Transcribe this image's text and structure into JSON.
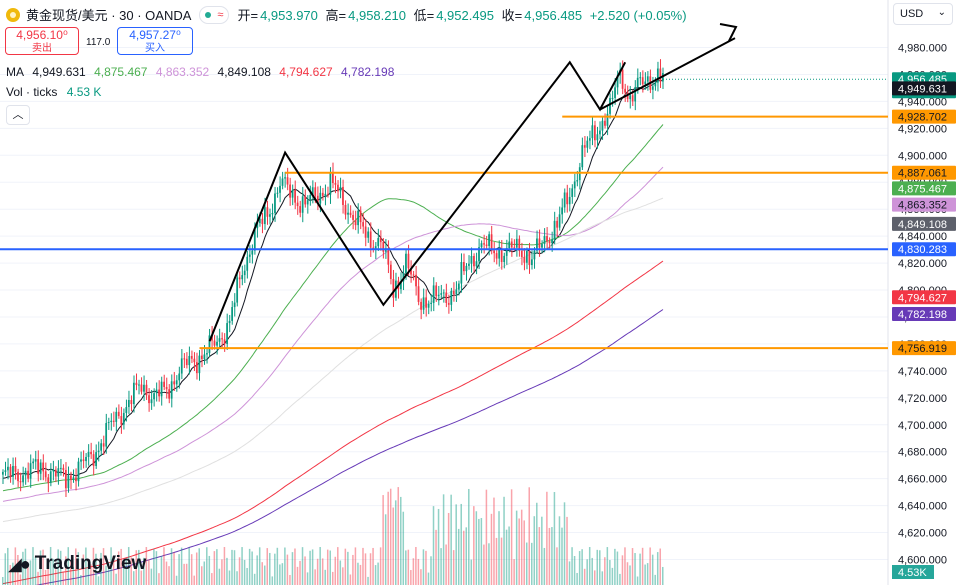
{
  "header": {
    "symbol_title": "黄金现货/美元 · 30 · OANDA",
    "open_label": "开=",
    "open": "4,953.970",
    "high_label": "高=",
    "high": "4,958.210",
    "low_label": "低=",
    "low": "4,952.495",
    "close_label": "收=",
    "close": "4,956.485",
    "change": "+2.520 (+0.05%)"
  },
  "trade": {
    "sell_price": "4,956.10⁰",
    "sell_label": "卖出",
    "spread": "117.0",
    "buy_price": "4,957.27⁰",
    "buy_label": "买入"
  },
  "ma": {
    "label": "MA",
    "values": [
      "4,949.631",
      "4,875.467",
      "4,863.352",
      "4,849.108",
      "4,794.627",
      "4,782.198"
    ],
    "colors": [
      "#131722",
      "#4caf50",
      "#ce93d8",
      "#131722",
      "#f23645",
      "#673ab7"
    ]
  },
  "vol": {
    "label": "Vol · ticks",
    "value": "4.53 K"
  },
  "currency": "USD",
  "logo": "TradingView",
  "colors": {
    "up": "#089981",
    "down": "#f23645",
    "hline_orange": "#ff9800",
    "hline_blue": "#2962ff"
  },
  "chart_data": {
    "type": "candlestick",
    "y_ticks": [
      "4,600.000",
      "4,620.000",
      "4,640.000",
      "4,660.000",
      "4,680.000",
      "4,700.000",
      "4,720.000",
      "4,740.000",
      "4,760.000",
      "4,780.000",
      "4,800.000",
      "4,820.000",
      "4,840.000",
      "4,860.000",
      "4,880.000",
      "4,900.000",
      "4,920.000",
      "4,940.000",
      "4,960.000",
      "4,980.000"
    ],
    "y_tick_values": [
      4600,
      4620,
      4640,
      4660,
      4680,
      4700,
      4720,
      4740,
      4760,
      4780,
      4800,
      4820,
      4840,
      4860,
      4880,
      4900,
      4920,
      4940,
      4960,
      4980
    ],
    "y_range": [
      4587,
      4993
    ],
    "horizontal_lines": [
      {
        "value": 4928.702,
        "label": "4,928.702",
        "color": "#ff9800"
      },
      {
        "value": 4887.061,
        "label": "4,887.061",
        "color": "#ff9800"
      },
      {
        "value": 4830.283,
        "label": "4,830.283",
        "color": "#2962ff"
      },
      {
        "value": 4756.919,
        "label": "4,756.919",
        "color": "#ff9800"
      }
    ],
    "price_labels": [
      {
        "value": 4956.485,
        "text": "4,956.485",
        "sub": "20:12",
        "bg": "#089981"
      },
      {
        "value": 4949.631,
        "text": "4,949.631",
        "bg": "#131722"
      },
      {
        "value": 4875.467,
        "text": "4,875.467",
        "bg": "#4caf50"
      },
      {
        "value": 4863.352,
        "text": "4,863.352",
        "bg": "#ce93d8",
        "fg": "#131722"
      },
      {
        "value": 4849.108,
        "text": "4,849.108",
        "bg": "#5d606b"
      },
      {
        "value": 4794.627,
        "text": "4,794.627",
        "bg": "#f23645"
      },
      {
        "value": 4782.198,
        "text": "4,782.198",
        "bg": "#673ab7"
      }
    ],
    "vol_label": "4.53K",
    "pattern": [
      [
        4762,
        4752
      ],
      [
        4888,
        4902
      ],
      [
        4877,
        4789
      ],
      [
        4874,
        4760
      ],
      [
        4966,
        4949
      ],
      [
        4930,
        4934
      ],
      [
        4965,
        4969
      ]
    ],
    "arrow": [
      [
        4962,
        4940
      ],
      [
        4962,
        4986
      ]
    ],
    "anchors": [
      [
        0,
        4662
      ],
      [
        5,
        4663
      ],
      [
        10,
        4666
      ],
      [
        15,
        4668
      ],
      [
        20,
        4664
      ],
      [
        25,
        4660
      ],
      [
        30,
        4668
      ],
      [
        35,
        4676
      ],
      [
        40,
        4690
      ],
      [
        45,
        4706
      ],
      [
        50,
        4716
      ],
      [
        55,
        4730
      ],
      [
        60,
        4720
      ],
      [
        65,
        4726
      ],
      [
        70,
        4740
      ],
      [
        75,
        4748
      ],
      [
        80,
        4752
      ],
      [
        85,
        4762
      ],
      [
        90,
        4776
      ],
      [
        95,
        4814
      ],
      [
        100,
        4842
      ],
      [
        105,
        4856
      ],
      [
        110,
        4880
      ],
      [
        115,
        4870
      ],
      [
        120,
        4864
      ],
      [
        125,
        4870
      ],
      [
        130,
        4880
      ],
      [
        135,
        4866
      ],
      [
        140,
        4852
      ],
      [
        145,
        4838
      ],
      [
        150,
        4836
      ],
      [
        155,
        4800
      ],
      [
        160,
        4820
      ],
      [
        165,
        4794
      ],
      [
        170,
        4792
      ],
      [
        175,
        4796
      ],
      [
        180,
        4800
      ],
      [
        185,
        4822
      ],
      [
        190,
        4832
      ],
      [
        195,
        4830
      ],
      [
        200,
        4828
      ],
      [
        205,
        4832
      ],
      [
        210,
        4822
      ],
      [
        215,
        4838
      ],
      [
        220,
        4848
      ],
      [
        225,
        4872
      ],
      [
        230,
        4900
      ],
      [
        235,
        4918
      ],
      [
        240,
        4930
      ],
      [
        242,
        4938
      ],
      [
        244,
        4960
      ],
      [
        246,
        4958
      ],
      [
        249,
        4940
      ],
      [
        252,
        4950
      ],
      [
        255,
        4958
      ],
      [
        258,
        4956
      ],
      [
        262,
        4956
      ]
    ]
  }
}
